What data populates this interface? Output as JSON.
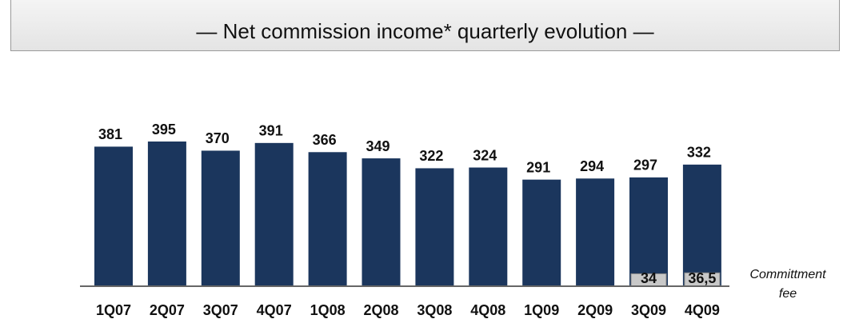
{
  "chart_data": {
    "type": "bar",
    "title": "— Net commission income* quarterly evolution —",
    "categories": [
      "1Q07",
      "2Q07",
      "3Q07",
      "4Q07",
      "1Q08",
      "2Q08",
      "3Q08",
      "4Q08",
      "1Q09",
      "2Q09",
      "3Q09",
      "4Q09"
    ],
    "values": [
      381,
      395,
      370,
      391,
      366,
      349,
      322,
      324,
      291,
      294,
      297,
      332
    ],
    "color": "#1b365d",
    "series": [
      {
        "name": "Committment fee",
        "color": "#c8c8c8",
        "values": [
          null,
          null,
          null,
          null,
          null,
          null,
          null,
          null,
          null,
          null,
          34,
          36.5
        ],
        "value_labels": [
          null,
          null,
          null,
          null,
          null,
          null,
          null,
          null,
          null,
          null,
          "34",
          "36,5"
        ]
      }
    ]
  }
}
